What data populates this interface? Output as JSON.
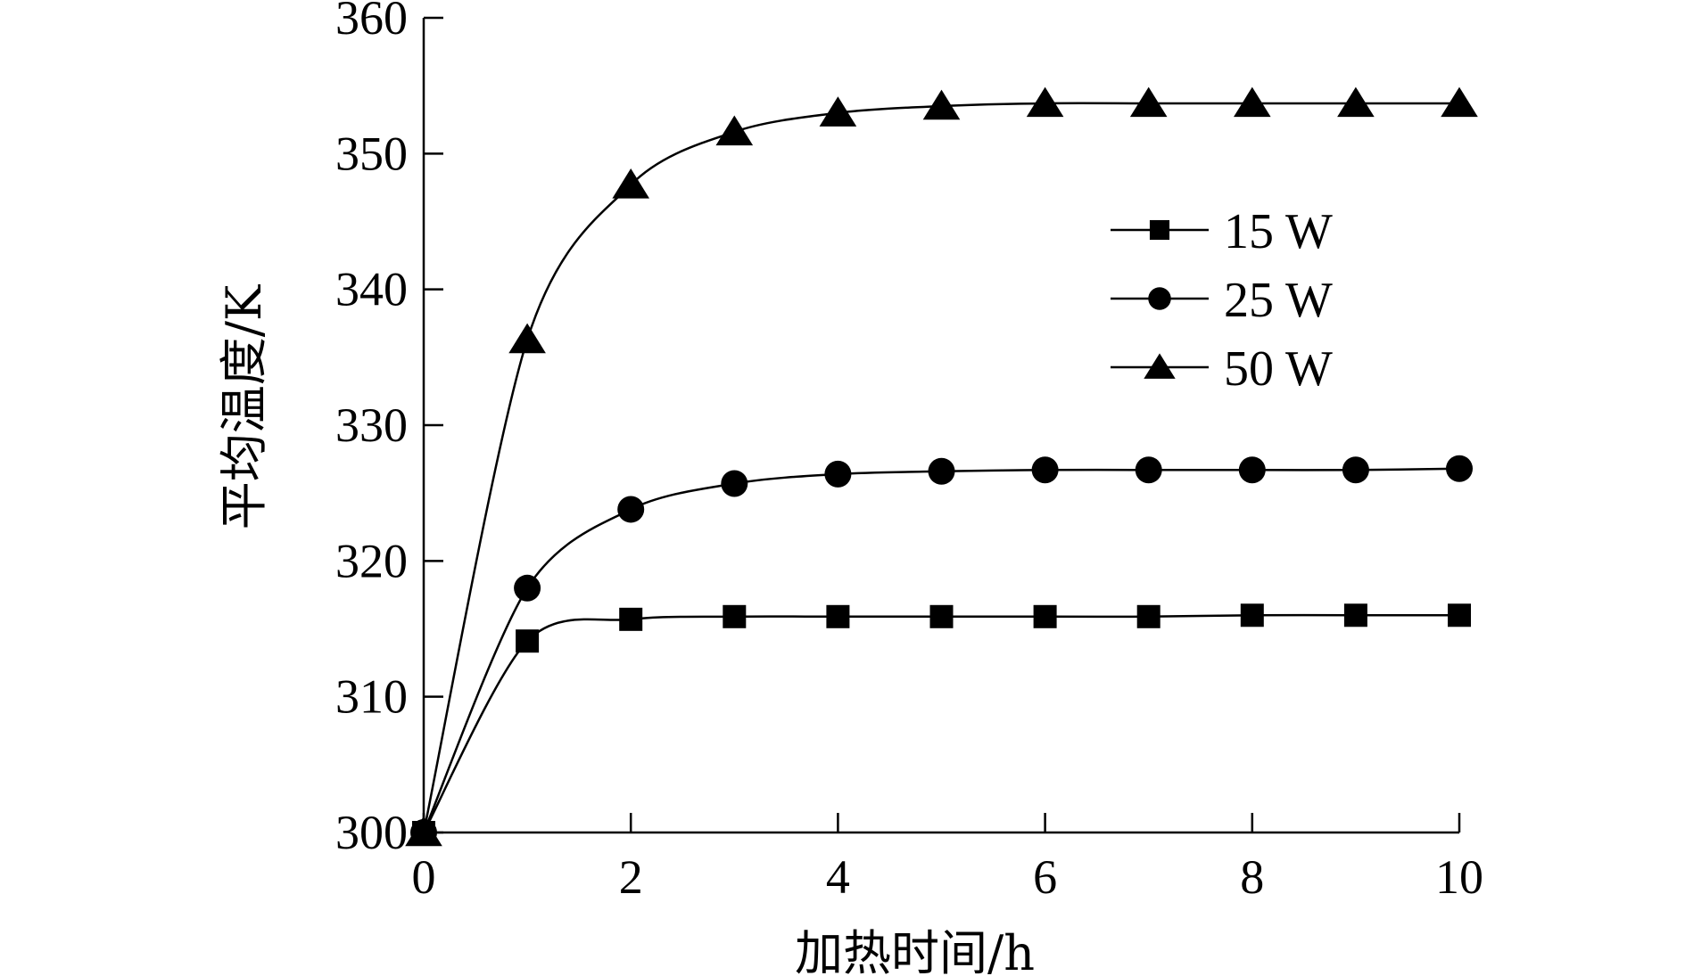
{
  "chart_data": {
    "type": "line",
    "title": "",
    "xlabel": "加热时间/h",
    "ylabel": "平均温度/K",
    "xlim": [
      0,
      10
    ],
    "ylim": [
      300,
      360
    ],
    "xticks": [
      0,
      2,
      4,
      6,
      8,
      10
    ],
    "yticks": [
      300,
      310,
      320,
      330,
      340,
      350,
      360
    ],
    "x": [
      0,
      1,
      2,
      3,
      4,
      5,
      6,
      7,
      8,
      9,
      10
    ],
    "grid": false,
    "legend_position": "top-right",
    "series": [
      {
        "name": "15 W",
        "marker": "square",
        "values": [
          300,
          314.1,
          315.7,
          315.9,
          315.9,
          315.9,
          315.9,
          315.9,
          316.0,
          316.0,
          316.0
        ]
      },
      {
        "name": "25 W",
        "marker": "circle",
        "values": [
          300,
          318.0,
          323.8,
          325.7,
          326.4,
          326.6,
          326.7,
          326.7,
          326.7,
          326.7,
          326.8
        ]
      },
      {
        "name": "50 W",
        "marker": "triangle",
        "values": [
          300,
          336.3,
          347.7,
          351.6,
          353.0,
          353.5,
          353.7,
          353.7,
          353.7,
          353.7,
          353.7
        ]
      }
    ],
    "colors": {
      "line": "#000000",
      "marker": "#000000"
    }
  }
}
